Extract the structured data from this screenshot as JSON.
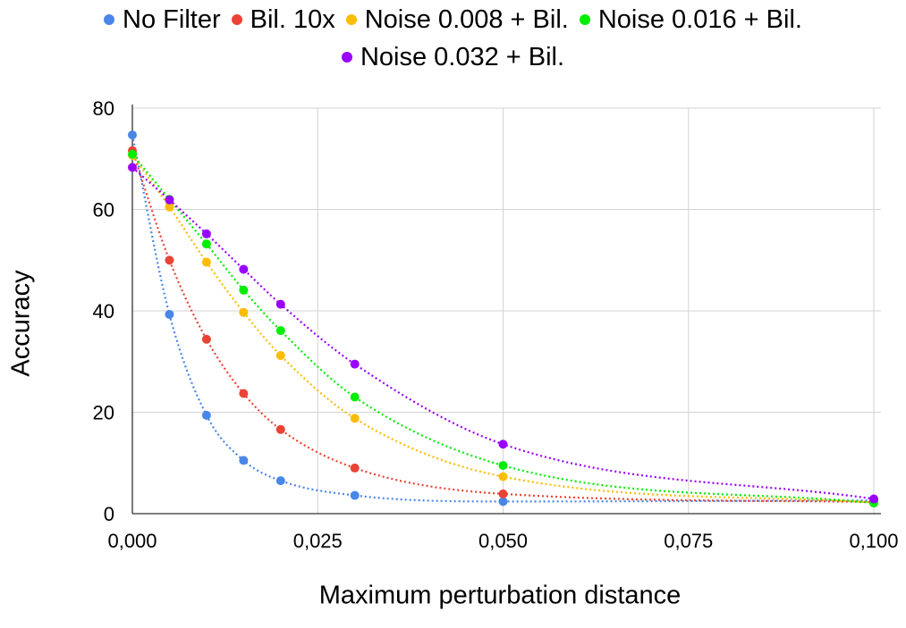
{
  "chart_data": {
    "type": "scatter",
    "xlabel": "Maximum perturbation distance",
    "ylabel": "Accuracy",
    "xlim": [
      0,
      0.1
    ],
    "ylim": [
      0,
      80
    ],
    "x_ticks": [
      "0,000",
      "0,025",
      "0,050",
      "0,075",
      "0,100"
    ],
    "y_ticks": [
      "0",
      "20",
      "40",
      "60",
      "80"
    ],
    "grid": true,
    "legend_position": "top",
    "trendline": "dotted",
    "x": [
      0,
      0.005,
      0.01,
      0.015,
      0.02,
      0.03,
      0.05,
      0.1
    ],
    "series": [
      {
        "name": "No Filter",
        "color": "#4a86e8",
        "values": [
          74.7,
          39.3,
          19.4,
          10.5,
          6.5,
          3.6,
          2.4,
          2.6
        ]
      },
      {
        "name": "Bil. 10x",
        "color": "#ea4335",
        "values": [
          71.6,
          50.0,
          34.4,
          23.7,
          16.6,
          9.0,
          3.9,
          2.3
        ]
      },
      {
        "name": "Noise 0.008 + Bil.",
        "color": "#fbbc04",
        "values": [
          70.7,
          60.5,
          49.6,
          39.7,
          31.2,
          18.8,
          7.3,
          2.2
        ]
      },
      {
        "name": "Noise 0.016 + Bil.",
        "color": "#00ee00",
        "values": [
          70.9,
          62.0,
          53.2,
          44.1,
          36.1,
          23.0,
          9.5,
          2.1
        ]
      },
      {
        "name": "Noise 0.032 + Bil.",
        "color": "#9900ff",
        "values": [
          68.3,
          61.9,
          55.2,
          48.2,
          41.3,
          29.5,
          13.7,
          2.9
        ]
      }
    ]
  }
}
